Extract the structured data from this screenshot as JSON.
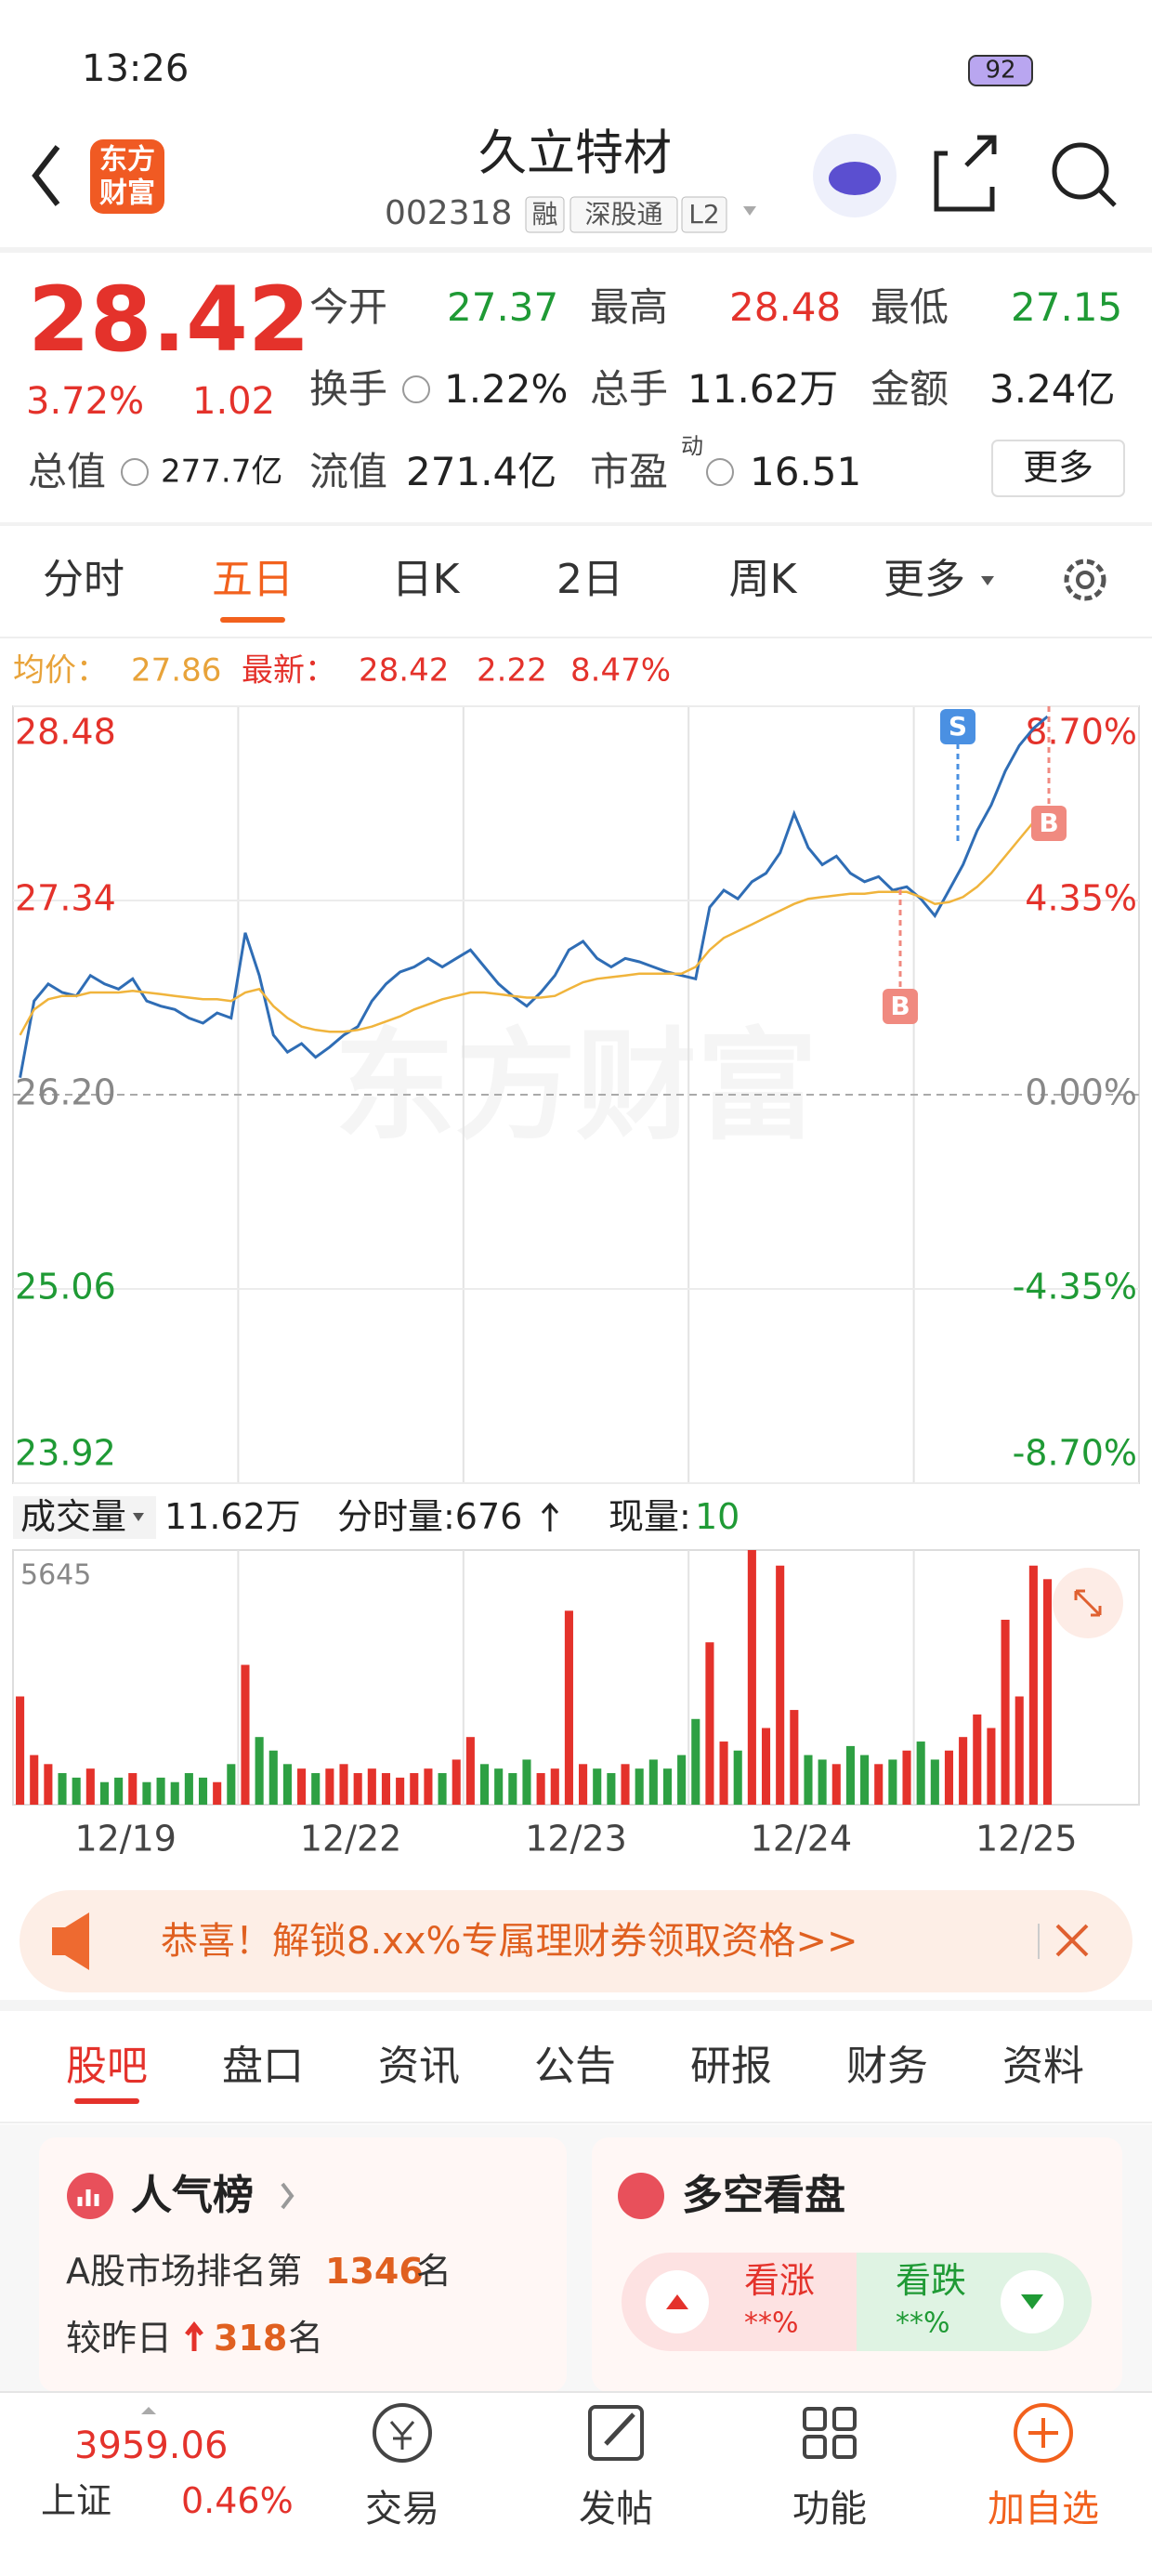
{
  "status_bar": {
    "time": "13:26",
    "battery": "92"
  },
  "header": {
    "logo": [
      "东方",
      "财富"
    ],
    "title": "久立特材",
    "code": "002318",
    "tags": [
      "融",
      "深股通",
      "L2"
    ]
  },
  "quote": {
    "price": "28.42",
    "change_pct": "3.72%",
    "change": "1.02",
    "rows": [
      [
        {
          "label": "今开",
          "value": "27.37"
        },
        {
          "label": "最高",
          "value": "28.48"
        },
        {
          "label": "最低",
          "value": "27.15"
        }
      ],
      [
        {
          "label": "换手",
          "value": "1.22%"
        },
        {
          "label": "总手",
          "value": "11.62万"
        },
        {
          "label": "金额",
          "value": "3.24亿"
        }
      ],
      [
        {
          "label": "总值",
          "value": "277.7亿"
        },
        {
          "label": "流值",
          "value": "271.4亿"
        },
        {
          "label": "市盈",
          "sup": "动",
          "value": "16.51"
        }
      ]
    ],
    "more": "更多"
  },
  "period_tabs": [
    "分时",
    "五日",
    "日K",
    "2日",
    "周K",
    "更多"
  ],
  "chart_info": {
    "avg_label": "均价：",
    "avg": "27.86",
    "last_label": "最新：",
    "last": "28.42",
    "change": "2.22",
    "change_pct": "8.47%"
  },
  "chart_data": [
    {
      "type": "line",
      "categories": [
        "12/19",
        "12/22",
        "12/23",
        "12/24",
        "12/25"
      ],
      "watermark": "东方财富",
      "series": [
        {
          "color": "#2f6db5",
          "values": [
            [
              26.3,
              26.75,
              26.85,
              26.8,
              26.78,
              26.9,
              26.85,
              26.82,
              26.88,
              26.75,
              26.72,
              26.7,
              26.65,
              26.62,
              26.68,
              26.65
            ],
            [
              27.15,
              26.9,
              26.55,
              26.45,
              26.5,
              26.42,
              26.48,
              26.55,
              26.6,
              26.75,
              26.85,
              26.92,
              26.95,
              27.0,
              26.95,
              27.0
            ],
            [
              27.05,
              26.95,
              26.85,
              26.78,
              26.72,
              26.8,
              26.9,
              27.05,
              27.1,
              27.0,
              26.95,
              27.0,
              26.98,
              26.95,
              26.92,
              26.9
            ],
            [
              26.88,
              27.3,
              27.4,
              27.35,
              27.45,
              27.5,
              27.62,
              27.85,
              27.65,
              27.55,
              27.6,
              27.5,
              27.45,
              27.48,
              27.4,
              27.42
            ],
            [
              27.35,
              27.25,
              27.4,
              27.55,
              27.75,
              27.9,
              28.1,
              28.25,
              28.35,
              28.42
            ]
          ]
        },
        {
          "color": "#f0b43c",
          "values": [
            [
              26.55,
              26.7,
              26.76,
              26.78,
              26.78,
              26.8,
              26.8,
              26.8,
              26.81,
              26.8,
              26.79,
              26.78,
              26.77,
              26.76,
              26.76,
              26.75
            ],
            [
              26.8,
              26.82,
              26.72,
              26.65,
              26.6,
              26.58,
              26.57,
              26.57,
              26.58,
              26.6,
              26.63,
              26.66,
              26.7,
              26.73,
              26.76,
              26.78
            ],
            [
              26.8,
              26.8,
              26.79,
              26.78,
              26.77,
              26.77,
              26.78,
              26.82,
              26.86,
              26.88,
              26.89,
              26.9,
              26.91,
              26.91,
              26.91,
              26.91
            ],
            [
              26.95,
              27.05,
              27.12,
              27.16,
              27.2,
              27.24,
              27.28,
              27.32,
              27.35,
              27.36,
              27.37,
              27.38,
              27.38,
              27.39,
              27.39,
              27.39
            ],
            [
              27.36,
              27.32,
              27.33,
              27.36,
              27.42,
              27.5,
              27.6,
              27.7,
              27.8,
              27.86
            ]
          ]
        }
      ],
      "ylim": [
        23.92,
        28.48
      ],
      "yticks": [
        28.48,
        27.34,
        {
          "value": 26.2,
          "label": "26.20"
        },
        25.06,
        23.92
      ],
      "y2lim": [
        -8.7,
        8.7
      ],
      "y2ticks": [
        {
          "value": 8.7,
          "label": "8.70%"
        },
        {
          "value": 4.35,
          "label": "4.35%"
        },
        {
          "value": 0,
          "label": "0.00%"
        },
        {
          "value": -4.35,
          "label": "-4.35%"
        },
        {
          "value": -8.7,
          "label": "-8.70%"
        }
      ],
      "up_color": "#e4322b",
      "down_color": "#1f9a35",
      "base_color": "#888888",
      "signals": [
        "S",
        "B",
        "B"
      ]
    },
    {
      "type": "bar",
      "ylim": [
        0,
        5645
      ],
      "yticks": [
        5645
      ],
      "up_color": "#e4322b",
      "down_color": "#2ea043",
      "values": [
        [
          2400,
          1100,
          900,
          700,
          600,
          800,
          500,
          600,
          700,
          500,
          600,
          500,
          700,
          600,
          500,
          900
        ],
        [
          3100,
          1500,
          1200,
          900,
          800,
          700,
          800,
          900,
          700,
          800,
          700,
          600,
          700,
          800,
          700,
          1000
        ],
        [
          1500,
          900,
          800,
          700,
          1000,
          700,
          800,
          4300,
          900,
          800,
          700,
          900,
          800,
          1000,
          800,
          1100
        ],
        [
          1900,
          3600,
          1400,
          1200,
          5645,
          1700,
          5300,
          2100,
          1100,
          1000,
          900,
          1300,
          1100,
          900,
          1000,
          1200
        ],
        [
          1400,
          1000,
          1200,
          1500,
          2000,
          1700,
          4100,
          2400,
          5300,
          5000
        ]
      ]
    }
  ],
  "volume_info": {
    "label": "成交量",
    "total": "11.62万",
    "tick_label": "分时量:676",
    "now_label": "现量:",
    "now": "10"
  },
  "banner": {
    "text": "恭喜！解锁8.xx%专属理财券领取资格>>"
  },
  "section_tabs": [
    "股吧",
    "盘口",
    "资讯",
    "公告",
    "研报",
    "财务",
    "资料"
  ],
  "cards": {
    "popularity": {
      "title": "人气榜",
      "rank_text": "A股市场排名第",
      "rank": "1346",
      "rank_unit": "名",
      "delta_text": "较昨日",
      "delta": "318",
      "delta_unit": "名"
    },
    "sentiment": {
      "title": "多空看盘",
      "bull": "看涨",
      "bull_pct": "**%",
      "bear": "看跌",
      "bear_pct": "**%"
    }
  },
  "bottom_nav": {
    "index_value": "3959.06",
    "index_name": "上证",
    "index_change": "0.46%",
    "items": [
      "交易",
      "发帖",
      "功能",
      "加自选"
    ]
  }
}
